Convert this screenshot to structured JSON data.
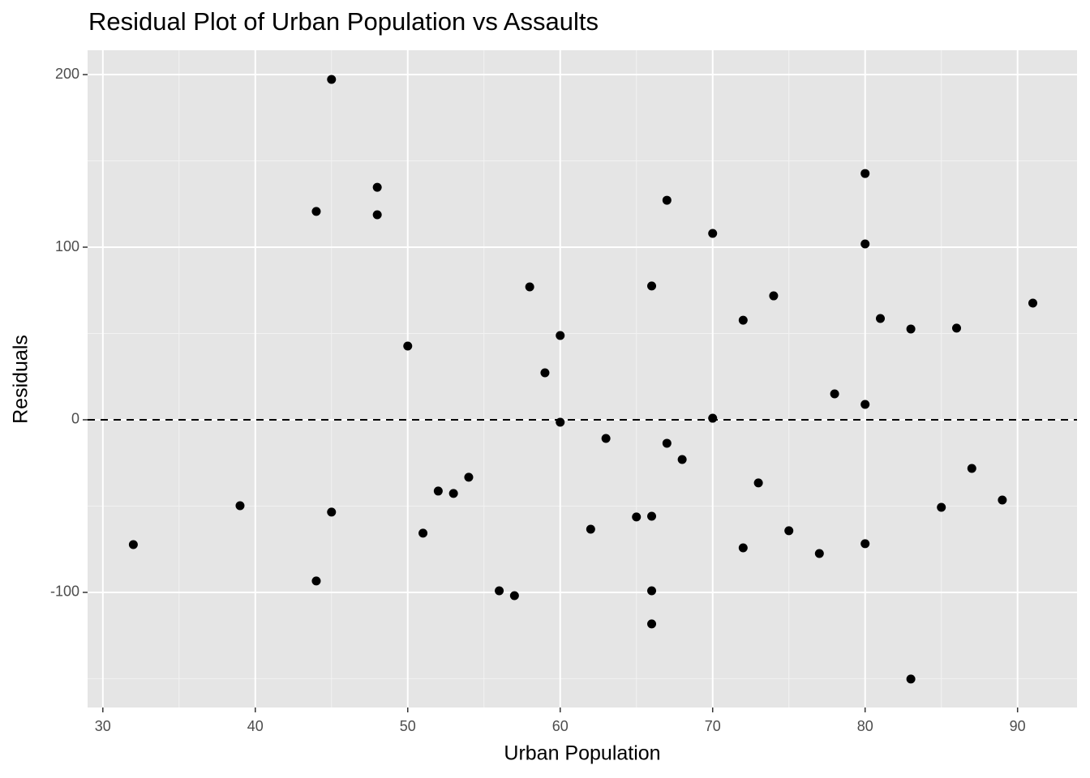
{
  "chart_data": {
    "type": "scatter",
    "title": "Residual Plot of Urban Population vs Assaults",
    "x_label": "Urban Population",
    "y_label": "Residuals",
    "x": [
      32,
      39,
      44,
      44,
      45,
      45,
      48,
      48,
      50,
      51,
      52,
      53,
      54,
      56,
      57,
      58,
      59,
      60,
      60,
      62,
      63,
      65,
      66,
      66,
      66,
      66,
      67,
      67,
      68,
      70,
      70,
      72,
      72,
      73,
      74,
      75,
      77,
      78,
      80,
      80,
      80,
      80,
      81,
      83,
      83,
      85,
      86,
      87,
      89,
      91
    ],
    "values": [
      -72.3,
      -49.8,
      120.7,
      -93.4,
      197.2,
      -53.5,
      134.7,
      118.8,
      42.7,
      -65.7,
      -41.3,
      -42.7,
      -33.3,
      -99.1,
      -101.9,
      77.0,
      27.2,
      48.8,
      -1.4,
      -63.4,
      -10.8,
      -56.3,
      77.5,
      -55.9,
      -99.1,
      -118.3,
      127.2,
      -13.6,
      -23.0,
      108.0,
      0.9,
      57.7,
      -74.2,
      -36.6,
      71.8,
      -64.3,
      -77.5,
      15.0,
      142.7,
      101.9,
      8.9,
      -71.8,
      58.7,
      52.6,
      -150.2,
      -50.7,
      53.1,
      -28.2,
      -46.5,
      67.6
    ],
    "color": "#000000",
    "xlim": [
      29,
      93.9
    ],
    "ylim": [
      -166.7,
      214.1
    ],
    "xticks": [
      30,
      40,
      50,
      60,
      70,
      80,
      90
    ],
    "yticks": [
      -100,
      0,
      100,
      200
    ],
    "x_minor_ticks": [
      35,
      45,
      55,
      65,
      75,
      85
    ],
    "y_minor_ticks": [
      -150,
      -50,
      50,
      150
    ],
    "hline": 0,
    "grid": true
  }
}
